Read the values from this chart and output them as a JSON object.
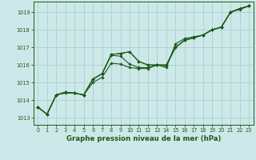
{
  "title": "Graphe pression niveau de la mer (hPa)",
  "bg_color": "#cde8e8",
  "line_color": "#1a5c1a",
  "grid_color": "#aacfcf",
  "axis_color": "#1a5c1a",
  "text_color": "#1a5c1a",
  "xlim": [
    -0.5,
    23.5
  ],
  "ylim": [
    1012.6,
    1019.6
  ],
  "yticks": [
    1013,
    1014,
    1015,
    1016,
    1017,
    1018,
    1019
  ],
  "xticks": [
    0,
    1,
    2,
    3,
    4,
    5,
    6,
    7,
    8,
    9,
    10,
    11,
    12,
    13,
    14,
    15,
    16,
    17,
    18,
    19,
    20,
    21,
    22,
    23
  ],
  "series": [
    [
      1013.6,
      1013.2,
      1014.3,
      1014.4,
      1014.4,
      1014.3,
      1015.0,
      1015.3,
      1016.1,
      1016.05,
      1015.85,
      1015.8,
      1015.8,
      1016.0,
      1015.85,
      1017.2,
      1017.5,
      1017.6,
      1017.7,
      1018.0,
      1018.15,
      1019.0,
      1019.15,
      1019.35
    ],
    [
      1013.6,
      1013.2,
      1014.3,
      1014.45,
      1014.4,
      1014.3,
      1015.2,
      1015.5,
      1016.55,
      1016.5,
      1016.05,
      1015.85,
      1015.85,
      1016.0,
      1015.95,
      1017.0,
      1017.4,
      1017.55,
      1017.7,
      1018.0,
      1018.15,
      1019.0,
      1019.2,
      1019.35
    ],
    [
      1013.6,
      1013.2,
      1014.3,
      1014.45,
      1014.4,
      1014.3,
      1015.2,
      1015.5,
      1016.6,
      1016.65,
      1016.75,
      1016.2,
      1016.0,
      1016.0,
      1016.0,
      1017.0,
      1017.4,
      1017.55,
      1017.7,
      1018.0,
      1018.15,
      1019.0,
      1019.2,
      1019.35
    ],
    [
      1013.6,
      1013.2,
      1014.3,
      1014.45,
      1014.4,
      1014.3,
      1015.2,
      1015.5,
      1016.6,
      1016.65,
      1016.75,
      1016.2,
      1016.0,
      1016.0,
      1016.0,
      1017.0,
      1017.4,
      1017.55,
      1017.7,
      1018.0,
      1018.15,
      1019.0,
      1019.2,
      1019.35
    ]
  ],
  "markersize": 1.8,
  "linewidth": 0.8,
  "title_fontsize": 6.2,
  "tick_fontsize": 4.8
}
